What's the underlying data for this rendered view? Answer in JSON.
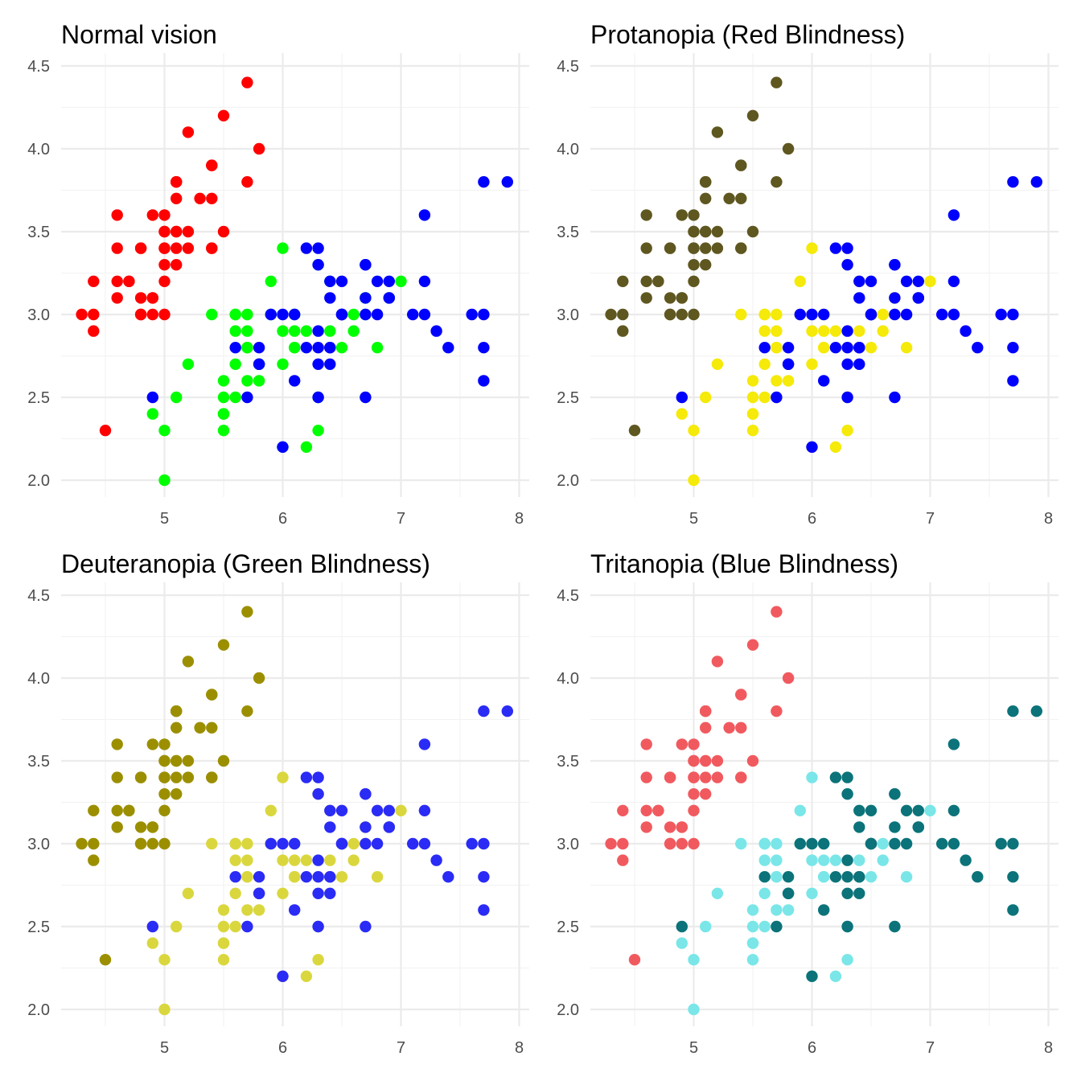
{
  "base_points": [
    [
      5.1,
      3.5,
      0
    ],
    [
      4.9,
      3.0,
      0
    ],
    [
      4.7,
      3.2,
      0
    ],
    [
      4.6,
      3.1,
      0
    ],
    [
      5.0,
      3.6,
      0
    ],
    [
      5.4,
      3.9,
      0
    ],
    [
      4.6,
      3.4,
      0
    ],
    [
      5.0,
      3.4,
      0
    ],
    [
      4.4,
      2.9,
      0
    ],
    [
      4.9,
      3.1,
      0
    ],
    [
      5.4,
      3.7,
      0
    ],
    [
      4.8,
      3.4,
      0
    ],
    [
      4.8,
      3.0,
      0
    ],
    [
      4.3,
      3.0,
      0
    ],
    [
      5.8,
      4.0,
      0
    ],
    [
      5.7,
      4.4,
      0
    ],
    [
      5.4,
      3.9,
      0
    ],
    [
      5.1,
      3.5,
      0
    ],
    [
      5.7,
      3.8,
      0
    ],
    [
      5.1,
      3.8,
      0
    ],
    [
      5.4,
      3.4,
      0
    ],
    [
      5.1,
      3.7,
      0
    ],
    [
      4.6,
      3.6,
      0
    ],
    [
      5.1,
      3.3,
      0
    ],
    [
      4.8,
      3.4,
      0
    ],
    [
      5.0,
      3.0,
      0
    ],
    [
      5.0,
      3.4,
      0
    ],
    [
      5.2,
      3.5,
      0
    ],
    [
      5.2,
      3.4,
      0
    ],
    [
      4.7,
      3.2,
      0
    ],
    [
      4.8,
      3.1,
      0
    ],
    [
      5.4,
      3.4,
      0
    ],
    [
      5.2,
      4.1,
      0
    ],
    [
      5.5,
      4.2,
      0
    ],
    [
      4.9,
      3.1,
      0
    ],
    [
      5.0,
      3.2,
      0
    ],
    [
      5.5,
      3.5,
      0
    ],
    [
      4.9,
      3.6,
      0
    ],
    [
      4.4,
      3.0,
      0
    ],
    [
      5.1,
      3.4,
      0
    ],
    [
      5.0,
      3.5,
      0
    ],
    [
      4.5,
      2.3,
      0
    ],
    [
      4.4,
      3.2,
      0
    ],
    [
      5.0,
      3.5,
      0
    ],
    [
      5.1,
      3.8,
      0
    ],
    [
      4.8,
      3.0,
      0
    ],
    [
      5.1,
      3.8,
      0
    ],
    [
      4.6,
      3.2,
      0
    ],
    [
      5.3,
      3.7,
      0
    ],
    [
      5.0,
      3.3,
      0
    ],
    [
      7.0,
      3.2,
      1
    ],
    [
      6.4,
      3.2,
      1
    ],
    [
      6.9,
      3.1,
      1
    ],
    [
      5.5,
      2.3,
      1
    ],
    [
      6.5,
      2.8,
      1
    ],
    [
      5.7,
      2.8,
      1
    ],
    [
      6.3,
      3.3,
      1
    ],
    [
      4.9,
      2.4,
      1
    ],
    [
      6.6,
      2.9,
      1
    ],
    [
      5.2,
      2.7,
      1
    ],
    [
      5.0,
      2.0,
      1
    ],
    [
      5.9,
      3.0,
      1
    ],
    [
      6.0,
      2.2,
      1
    ],
    [
      6.1,
      2.9,
      1
    ],
    [
      5.6,
      2.9,
      1
    ],
    [
      6.7,
      3.1,
      1
    ],
    [
      5.6,
      3.0,
      1
    ],
    [
      5.8,
      2.7,
      1
    ],
    [
      6.2,
      2.2,
      1
    ],
    [
      5.6,
      2.5,
      1
    ],
    [
      5.9,
      3.2,
      1
    ],
    [
      6.1,
      2.8,
      1
    ],
    [
      6.3,
      2.5,
      1
    ],
    [
      6.1,
      2.8,
      1
    ],
    [
      6.4,
      2.9,
      1
    ],
    [
      6.6,
      3.0,
      1
    ],
    [
      6.8,
      2.8,
      1
    ],
    [
      6.7,
      3.0,
      1
    ],
    [
      6.0,
      2.9,
      1
    ],
    [
      5.7,
      2.6,
      1
    ],
    [
      5.5,
      2.4,
      1
    ],
    [
      5.5,
      2.4,
      1
    ],
    [
      5.8,
      2.7,
      1
    ],
    [
      6.0,
      2.7,
      1
    ],
    [
      5.4,
      3.0,
      1
    ],
    [
      6.0,
      3.4,
      1
    ],
    [
      6.7,
      3.1,
      1
    ],
    [
      6.3,
      2.3,
      1
    ],
    [
      5.6,
      3.0,
      1
    ],
    [
      5.5,
      2.5,
      1
    ],
    [
      5.5,
      2.6,
      1
    ],
    [
      6.1,
      3.0,
      1
    ],
    [
      5.8,
      2.6,
      1
    ],
    [
      5.0,
      2.3,
      1
    ],
    [
      5.6,
      2.7,
      1
    ],
    [
      5.7,
      3.0,
      1
    ],
    [
      5.7,
      2.9,
      1
    ],
    [
      6.2,
      2.9,
      1
    ],
    [
      5.1,
      2.5,
      1
    ],
    [
      5.7,
      2.8,
      1
    ],
    [
      6.3,
      3.3,
      2
    ],
    [
      5.8,
      2.7,
      2
    ],
    [
      7.1,
      3.0,
      2
    ],
    [
      6.3,
      2.9,
      2
    ],
    [
      6.5,
      3.0,
      2
    ],
    [
      7.6,
      3.0,
      2
    ],
    [
      4.9,
      2.5,
      2
    ],
    [
      7.3,
      2.9,
      2
    ],
    [
      6.7,
      2.5,
      2
    ],
    [
      7.2,
      3.6,
      2
    ],
    [
      6.5,
      3.2,
      2
    ],
    [
      6.4,
      2.7,
      2
    ],
    [
      6.8,
      3.0,
      2
    ],
    [
      5.7,
      2.5,
      2
    ],
    [
      5.8,
      2.8,
      2
    ],
    [
      6.4,
      3.2,
      2
    ],
    [
      6.5,
      3.0,
      2
    ],
    [
      7.7,
      3.8,
      2
    ],
    [
      7.7,
      2.6,
      2
    ],
    [
      6.0,
      2.2,
      2
    ],
    [
      6.9,
      3.2,
      2
    ],
    [
      5.6,
      2.8,
      2
    ],
    [
      7.7,
      2.8,
      2
    ],
    [
      6.3,
      2.7,
      2
    ],
    [
      6.7,
      3.3,
      2
    ],
    [
      7.2,
      3.2,
      2
    ],
    [
      6.2,
      2.8,
      2
    ],
    [
      6.1,
      3.0,
      2
    ],
    [
      6.4,
      2.8,
      2
    ],
    [
      7.2,
      3.0,
      2
    ],
    [
      7.4,
      2.8,
      2
    ],
    [
      7.9,
      3.8,
      2
    ],
    [
      6.4,
      2.8,
      2
    ],
    [
      6.3,
      2.8,
      2
    ],
    [
      6.1,
      2.6,
      2
    ],
    [
      7.7,
      3.0,
      2
    ],
    [
      6.3,
      3.4,
      2
    ],
    [
      6.4,
      3.1,
      2
    ],
    [
      6.0,
      3.0,
      2
    ],
    [
      6.9,
      3.1,
      2
    ],
    [
      6.7,
      3.1,
      2
    ],
    [
      6.9,
      3.1,
      2
    ],
    [
      5.8,
      2.7,
      2
    ],
    [
      6.8,
      3.2,
      2
    ],
    [
      6.7,
      3.3,
      2
    ],
    [
      6.7,
      3.0,
      2
    ],
    [
      6.3,
      2.5,
      2
    ],
    [
      6.5,
      3.0,
      2
    ],
    [
      6.2,
      3.4,
      2
    ],
    [
      5.9,
      3.0,
      2
    ]
  ],
  "chart_data": [
    {
      "type": "scatter",
      "title": "Normal vision",
      "xlabel": "",
      "ylabel": "",
      "xlim": [
        4.3,
        7.9
      ],
      "ylim": [
        2.0,
        4.4
      ],
      "x_ticks": [
        "5",
        "6",
        "7",
        "8"
      ],
      "y_ticks": [
        "2.0",
        "2.5",
        "3.0",
        "3.5",
        "4.0",
        "4.5"
      ],
      "grid": true,
      "legend": "none",
      "group_colors": [
        "#FF0000",
        "#00FF00",
        "#0000FF"
      ]
    },
    {
      "type": "scatter",
      "title": "Protanopia (Red Blindness)",
      "xlabel": "",
      "ylabel": "",
      "xlim": [
        4.3,
        7.9
      ],
      "ylim": [
        2.0,
        4.4
      ],
      "x_ticks": [
        "5",
        "6",
        "7",
        "8"
      ],
      "y_ticks": [
        "2.0",
        "2.5",
        "3.0",
        "3.5",
        "4.0",
        "4.5"
      ],
      "grid": true,
      "legend": "none",
      "group_colors": [
        "#5F5720",
        "#F5EA09",
        "#0000FF"
      ]
    },
    {
      "type": "scatter",
      "title": "Deuteranopia (Green Blindness)",
      "xlabel": "",
      "ylabel": "",
      "xlim": [
        4.3,
        7.9
      ],
      "ylim": [
        2.0,
        4.4
      ],
      "x_ticks": [
        "5",
        "6",
        "7",
        "8"
      ],
      "y_ticks": [
        "2.0",
        "2.5",
        "3.0",
        "3.5",
        "4.0",
        "4.5"
      ],
      "grid": true,
      "legend": "none",
      "group_colors": [
        "#9B8F00",
        "#DAD73E",
        "#2A2BF5"
      ]
    },
    {
      "type": "scatter",
      "title": "Tritanopia (Blue Blindness)",
      "xlabel": "",
      "ylabel": "",
      "xlim": [
        4.3,
        7.9
      ],
      "ylim": [
        2.0,
        4.4
      ],
      "x_ticks": [
        "5",
        "6",
        "7",
        "8"
      ],
      "y_ticks": [
        "2.0",
        "2.5",
        "3.0",
        "3.5",
        "4.0",
        "4.5"
      ],
      "grid": true,
      "legend": "none",
      "group_colors": [
        "#F05A5F",
        "#7AE6E8",
        "#0B7379"
      ]
    }
  ]
}
